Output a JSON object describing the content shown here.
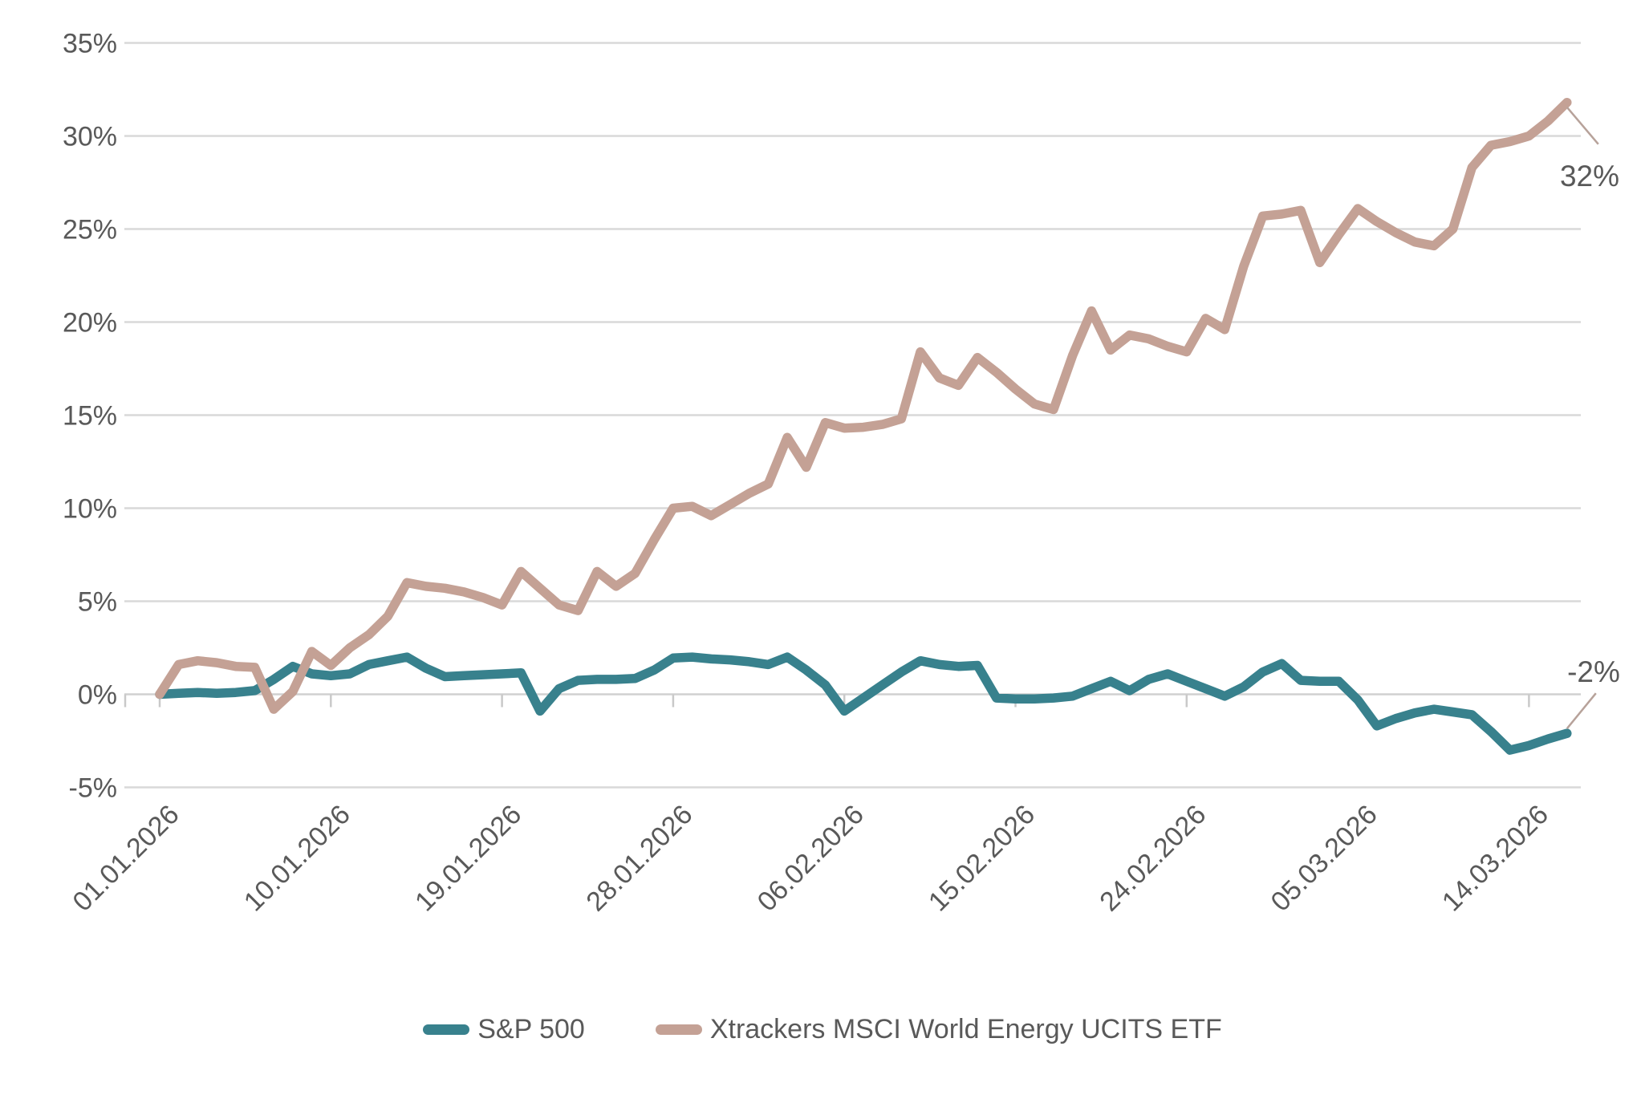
{
  "chart_data": {
    "type": "line",
    "title": "",
    "xlabel": "",
    "ylabel": "",
    "grid": true,
    "legend_position": "bottom",
    "n_points": 75,
    "x_start_label": "01.01.2026",
    "x_tick_interval_days": 9,
    "x_tick_labels": [
      "01.01.2026",
      "10.01.2026",
      "19.01.2026",
      "28.01.2026",
      "06.02.2026",
      "15.02.2026",
      "24.02.2026",
      "05.03.2026",
      "14.03.2026"
    ],
    "x_tick_indices": [
      0,
      9,
      18,
      27,
      36,
      45,
      54,
      63,
      72
    ],
    "y_axis": {
      "ylim": [
        -5,
        35
      ],
      "tick_values": [
        35,
        30,
        25,
        20,
        15,
        10,
        5,
        0,
        -5
      ],
      "tick_labels": [
        "35%",
        "30%",
        "25%",
        "20%",
        "15%",
        "10%",
        "5%",
        "0%",
        "-5%"
      ]
    },
    "series": [
      {
        "name": "S&P 500",
        "color": "#38818D",
        "end_label": "-2%",
        "values": [
          0.0,
          0.05,
          0.1,
          0.05,
          0.1,
          0.2,
          0.8,
          1.5,
          1.1,
          1.0,
          1.1,
          1.6,
          1.8,
          2.0,
          1.4,
          0.95,
          1.0,
          1.05,
          1.1,
          1.15,
          -0.9,
          0.3,
          0.75,
          0.8,
          0.8,
          0.85,
          1.3,
          1.95,
          2.0,
          1.9,
          1.85,
          1.75,
          1.6,
          2.0,
          1.3,
          0.5,
          -0.9,
          -0.2,
          0.5,
          1.2,
          1.8,
          1.6,
          1.5,
          1.55,
          -0.2,
          -0.25,
          -0.25,
          -0.2,
          -0.1,
          0.3,
          0.7,
          0.2,
          0.8,
          1.1,
          0.7,
          0.3,
          -0.1,
          0.4,
          1.2,
          1.65,
          0.75,
          0.7,
          0.7,
          -0.3,
          -1.7,
          -1.3,
          -1.0,
          -0.8,
          -0.95,
          -1.1,
          -2.0,
          -3.0,
          -2.75,
          -2.4,
          -2.1
        ]
      },
      {
        "name": "Xtrackers MSCI World Energy UCITS ETF",
        "color": "#C4A195",
        "end_label": "32%",
        "values": [
          0.0,
          1.6,
          1.8,
          1.7,
          1.5,
          1.45,
          -0.8,
          0.15,
          2.3,
          1.55,
          2.5,
          3.2,
          4.2,
          6.0,
          5.8,
          5.7,
          5.5,
          5.2,
          4.8,
          6.6,
          5.7,
          4.8,
          4.5,
          6.6,
          5.8,
          6.5,
          8.3,
          10.0,
          10.1,
          9.6,
          10.2,
          10.8,
          11.3,
          13.8,
          12.2,
          14.6,
          14.3,
          14.35,
          14.5,
          14.8,
          18.4,
          17.0,
          16.6,
          18.1,
          17.3,
          16.4,
          15.6,
          15.3,
          18.2,
          20.6,
          18.5,
          19.3,
          19.1,
          18.7,
          18.4,
          20.2,
          19.6,
          23.0,
          25.7,
          25.8,
          26.0,
          23.2,
          24.7,
          26.1,
          25.4,
          24.8,
          24.3,
          24.1,
          25.0,
          28.3,
          29.5,
          29.7,
          30.0,
          30.8,
          31.8
        ]
      }
    ]
  },
  "legend": {
    "items": [
      {
        "label": "S&P 500",
        "color": "#38818D"
      },
      {
        "label": "Xtrackers MSCI World Energy UCITS ETF",
        "color": "#C4A195"
      }
    ]
  },
  "colors": {
    "background": "#FFFFFF",
    "grid": "#D9D9D9",
    "axis": "#D0D0D0",
    "tick": "#C9C9C9",
    "text": "#595959",
    "leader": "#B7A29A"
  }
}
